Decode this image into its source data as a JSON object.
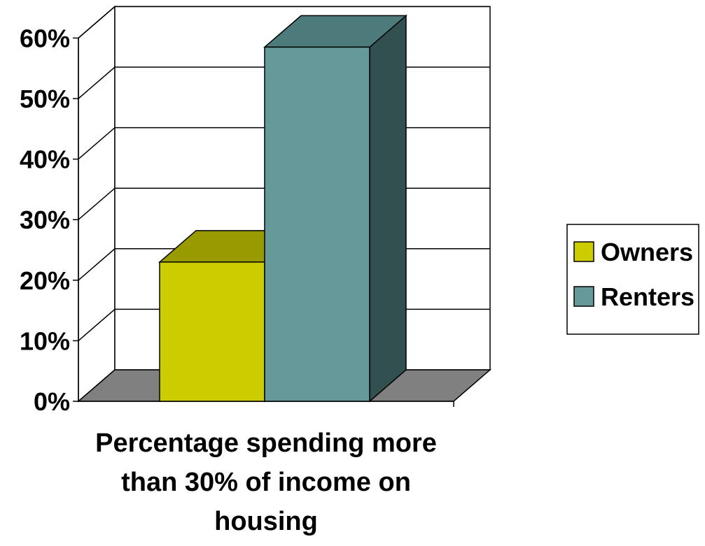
{
  "chart_data": {
    "type": "bar",
    "categories": [
      "Percentage spending more than 30% of income on housing"
    ],
    "series": [
      {
        "name": "Owners",
        "values": [
          0.23
        ],
        "color": "#cccc00",
        "top_color": "#999900",
        "side_color": "#8f8f00"
      },
      {
        "name": "Renters",
        "values": [
          0.585
        ],
        "color": "#669999",
        "top_color": "#4d7a7a",
        "side_color": "#335050"
      }
    ],
    "title": "",
    "xlabel_lines": [
      "Percentage spending more",
      "than 30% of income on",
      "housing"
    ],
    "ylabel": "",
    "ylim": [
      0,
      0.6
    ],
    "yticks": [
      0,
      0.1,
      0.2,
      0.3,
      0.4,
      0.5,
      0.6
    ],
    "ytick_labels": [
      "0%",
      "10%",
      "20%",
      "30%",
      "40%",
      "50%",
      "60%"
    ],
    "grid": true,
    "three_d": true,
    "legend_position": "right",
    "floor_color": "#808080"
  }
}
